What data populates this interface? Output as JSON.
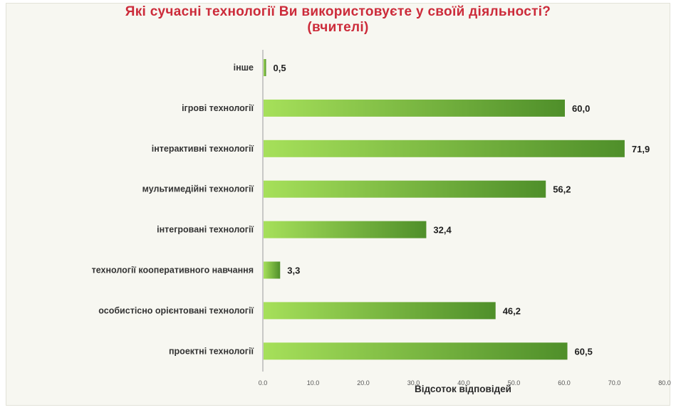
{
  "colors": {
    "title": "#cc2b3a",
    "bar_light": "#a6e05a",
    "bar_dark": "#4f8f2a",
    "panel_background": "#f7f7f1",
    "axis": "#9a9a9a"
  },
  "chart_data": {
    "type": "bar",
    "orientation": "horizontal",
    "title": "Які сучасні технології Ви використовуєте у своїй діяльності?",
    "subtitle": "(вчителі)",
    "categories": [
      "інше",
      "ігрові технології",
      "інтерактивні технології",
      "мультимедійні технології",
      "інтегровані технології",
      "технології кооперативного навчання",
      "особистісно орієнтовані технології",
      "проектні технології"
    ],
    "values": [
      0.5,
      60.0,
      71.9,
      56.2,
      32.4,
      3.3,
      46.2,
      60.5
    ],
    "value_labels": [
      "0,5",
      "60,0",
      "71,9",
      "56,2",
      "32,4",
      "3,3",
      "46,2",
      "60,5"
    ],
    "xlabel": "Відсоток відповідей",
    "ylabel": "",
    "xlim": [
      0,
      80
    ],
    "xticks": [
      "0.0",
      "10.0",
      "20.0",
      "30.0",
      "40.0",
      "50.0",
      "60.0",
      "70.0",
      "80.0"
    ],
    "grid": false,
    "legend": "none"
  }
}
